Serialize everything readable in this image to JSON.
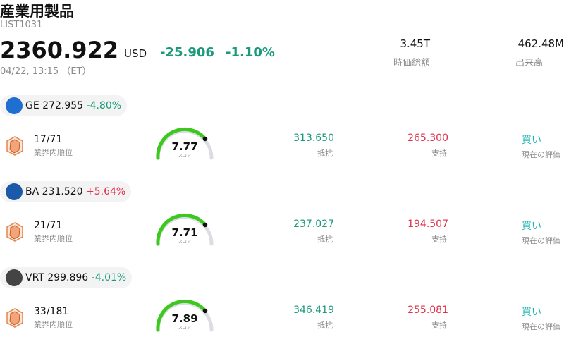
{
  "header": {
    "title": "産業用製品",
    "code": "LIST1031",
    "price": "2360.922",
    "currency": "USD",
    "change": "-25.906",
    "change_pct": "-1.10%",
    "time": "04/22, 13:15 （ET）",
    "stats": [
      {
        "value": "3.45T",
        "label": "時価総額"
      },
      {
        "value": "462.48M",
        "label": "出来高"
      }
    ]
  },
  "stocks": [
    {
      "ticker": "GE",
      "price": "272.955",
      "change": "-4.80%",
      "rank": "17/71",
      "rank_label": "業界内順位",
      "score": "7.77",
      "score_label": "スコア",
      "resistance": "313.650",
      "resistance_label": "抵抗",
      "support": "265.300",
      "support_label": "支持",
      "rating": "買い",
      "rating_label": "現在の評価"
    },
    {
      "ticker": "BA",
      "price": "231.520",
      "change": "+5.64%",
      "rank": "21/71",
      "rank_label": "業界内順位",
      "score": "7.71",
      "score_label": "スコア",
      "resistance": "237.027",
      "resistance_label": "抵抗",
      "support": "194.507",
      "support_label": "支持",
      "rating": "買い",
      "rating_label": "現在の評価"
    },
    {
      "ticker": "VRT",
      "price": "299.896",
      "change": "-4.01%",
      "rank": "33/181",
      "rank_label": "業界内順位",
      "score": "7.89",
      "score_label": "スコア",
      "resistance": "346.419",
      "resistance_label": "抵抗",
      "support": "255.081",
      "support_label": "支持",
      "rating": "買い",
      "rating_label": "現在の評価"
    }
  ]
}
